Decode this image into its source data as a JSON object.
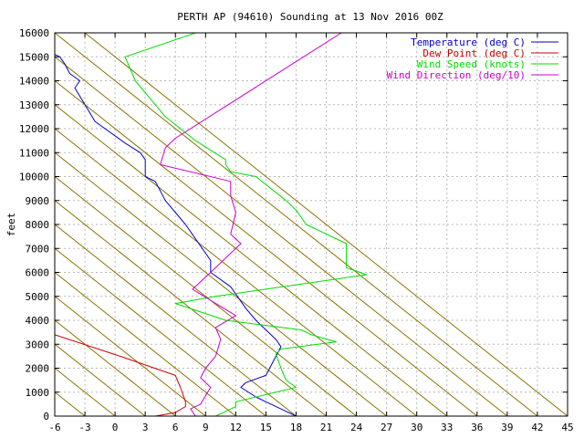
{
  "chart_data": {
    "type": "line",
    "title": "PERTH AP (94610) Sounding at 13 Nov 2016 00Z",
    "ylabel": "feet",
    "xlabel": "",
    "xlim": [
      -6,
      45
    ],
    "ylim": [
      0,
      16000
    ],
    "x_ticks": [
      -6,
      -3,
      0,
      3,
      6,
      9,
      12,
      15,
      18,
      21,
      24,
      27,
      30,
      33,
      36,
      39,
      42,
      45
    ],
    "y_ticks": [
      0,
      1000,
      2000,
      3000,
      4000,
      5000,
      6000,
      7000,
      8000,
      9000,
      10000,
      11000,
      12000,
      13000,
      14000,
      15000,
      16000
    ],
    "x_tick_labels": [
      "-6",
      "-3",
      "0",
      "3",
      "6",
      "9",
      "12",
      "15",
      "18",
      "21",
      "24",
      "27",
      "30",
      "33",
      "36",
      "39",
      "42",
      "45"
    ],
    "y_tick_labels": [
      "0",
      "1000",
      "2000",
      "3000",
      "4000",
      "5000",
      "6000",
      "7000",
      "8000",
      "9000",
      "10000",
      "11000",
      "12000",
      "13000",
      "14000",
      "15000",
      "16000"
    ],
    "grid": true,
    "legend_position": "top-right",
    "dry_adiabats": {
      "color": "#8b7300",
      "x_at_zero_ft": [
        -3,
        0,
        3,
        6,
        9,
        12,
        15,
        18,
        21,
        24,
        27,
        30,
        33,
        36,
        39,
        42,
        45
      ],
      "lapse_deg_per_1000ft": 3
    },
    "series": [
      {
        "name": "Temperature (deg C)",
        "color": "#0000cc",
        "points": [
          [
            18,
            0
          ],
          [
            17,
            200
          ],
          [
            15,
            600
          ],
          [
            14,
            800
          ],
          [
            12.5,
            1200
          ],
          [
            13,
            1400
          ],
          [
            15,
            1700
          ],
          [
            16,
            2500
          ],
          [
            16.5,
            2900
          ],
          [
            16,
            3200
          ],
          [
            14,
            4000
          ],
          [
            13,
            4500
          ],
          [
            11.5,
            5400
          ],
          [
            9.5,
            6000
          ],
          [
            9.5,
            6500
          ],
          [
            7,
            8000
          ],
          [
            5,
            9000
          ],
          [
            4,
            9800
          ],
          [
            3,
            10000
          ],
          [
            3,
            10700
          ],
          [
            2.5,
            11000
          ],
          [
            1,
            11400
          ],
          [
            -2,
            12300
          ],
          [
            -3,
            13000
          ],
          [
            -4,
            13700
          ],
          [
            -3.5,
            14000
          ],
          [
            -4.5,
            14300
          ],
          [
            -5,
            14700
          ],
          [
            -5.5,
            15000
          ],
          [
            -6,
            15100
          ]
        ]
      },
      {
        "name": "Dew Point (deg C)",
        "color": "#cc0000",
        "points": [
          [
            4,
            0
          ],
          [
            6,
            150
          ],
          [
            7,
            400
          ],
          [
            7,
            600
          ],
          [
            6.5,
            1200
          ],
          [
            6,
            1700
          ],
          [
            0.5,
            2500
          ],
          [
            -6,
            3400
          ]
        ]
      },
      {
        "name": "Wind Speed (knots)",
        "color": "#00dd00",
        "points": [
          [
            10,
            0
          ],
          [
            11,
            200
          ],
          [
            12,
            400
          ],
          [
            12,
            600
          ],
          [
            18,
            1200
          ],
          [
            17,
            1500
          ],
          [
            16.5,
            2000
          ],
          [
            16,
            2600
          ],
          [
            16.5,
            2800
          ],
          [
            22,
            3100
          ],
          [
            19.5,
            3400
          ],
          [
            18.5,
            3600
          ],
          [
            11,
            4000
          ],
          [
            6,
            4700
          ],
          [
            10,
            5000
          ],
          [
            25,
            5900
          ],
          [
            23,
            6200
          ],
          [
            23,
            7200
          ],
          [
            19,
            8000
          ],
          [
            18,
            8600
          ],
          [
            17,
            9000
          ],
          [
            14,
            10000
          ],
          [
            11.5,
            10200
          ],
          [
            11,
            10500
          ],
          [
            11,
            10700
          ],
          [
            8,
            11500
          ],
          [
            5,
            12500
          ],
          [
            2,
            14000
          ],
          [
            1,
            15000
          ],
          [
            8,
            16000
          ]
        ]
      },
      {
        "name": "Wind Direction (deg/10)",
        "color": "#cc00cc",
        "points": [
          [
            8,
            0
          ],
          [
            7.5,
            300
          ],
          [
            8.5,
            500
          ],
          [
            9.5,
            1200
          ],
          [
            8.5,
            1600
          ],
          [
            9,
            2000
          ],
          [
            10,
            2500
          ],
          [
            10.5,
            3200
          ],
          [
            10,
            3700
          ],
          [
            12,
            4200
          ],
          [
            10,
            4700
          ],
          [
            7.7,
            5300
          ],
          [
            9.5,
            6000
          ],
          [
            10,
            6200
          ],
          [
            12.5,
            7200
          ],
          [
            11.5,
            7600
          ],
          [
            12,
            8500
          ],
          [
            11.5,
            9200
          ],
          [
            11.5,
            9800
          ],
          [
            4.5,
            10500
          ],
          [
            5,
            11200
          ],
          [
            6,
            11600
          ],
          [
            22.5,
            16000
          ]
        ]
      }
    ]
  }
}
